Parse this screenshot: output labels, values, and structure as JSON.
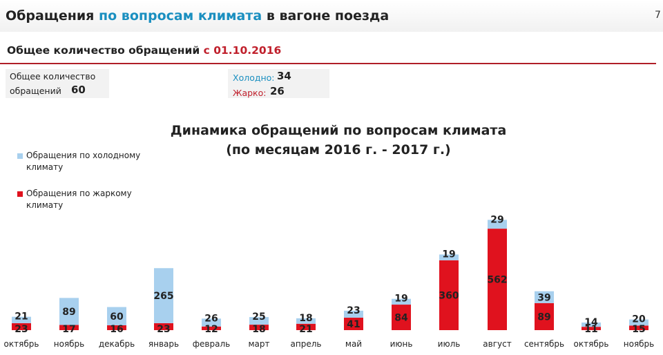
{
  "header": {
    "title_part1": "Обращения",
    "title_part2": "по вопросам климата",
    "title_part3": "в вагоне поезда",
    "page_number": "7"
  },
  "subtitle": {
    "text": "Общее количество обращений",
    "date": "с 01.10.2016"
  },
  "totals": {
    "label_line1": "Общее количество",
    "label_line2": "обращений",
    "value": "60",
    "cold_label": "Холодно:",
    "cold_value": "34",
    "hot_label": "Жарко:",
    "hot_value": "26"
  },
  "colors": {
    "cold": "#a8d0ee",
    "hot": "#e0121e",
    "accent_blue": "#1a8fc0",
    "accent_red": "#c0202c"
  },
  "chart_data": {
    "type": "bar",
    "stacked": true,
    "title_line1": "Динамика обращений по вопросам климата",
    "title_line2": "(по месяцам 2016 г. - 2017 г.)",
    "categories": [
      "октябрь",
      "ноябрь",
      "декабрь",
      "январь",
      "февраль",
      "март",
      "апрель",
      "май",
      "июнь",
      "июль",
      "август",
      "сентябрь",
      "октябрь",
      "ноябрь"
    ],
    "series": [
      {
        "name": "Обращения по жаркому климату",
        "values": [
          23,
          17,
          16,
          23,
          12,
          18,
          21,
          41,
          84,
          360,
          562,
          89,
          11,
          15
        ]
      },
      {
        "name": "Обращения по холодному климату",
        "values": [
          21,
          89,
          60,
          265,
          26,
          25,
          18,
          23,
          19,
          19,
          29,
          39,
          14,
          20
        ]
      }
    ],
    "legend_position": "top-left",
    "grid": false
  }
}
